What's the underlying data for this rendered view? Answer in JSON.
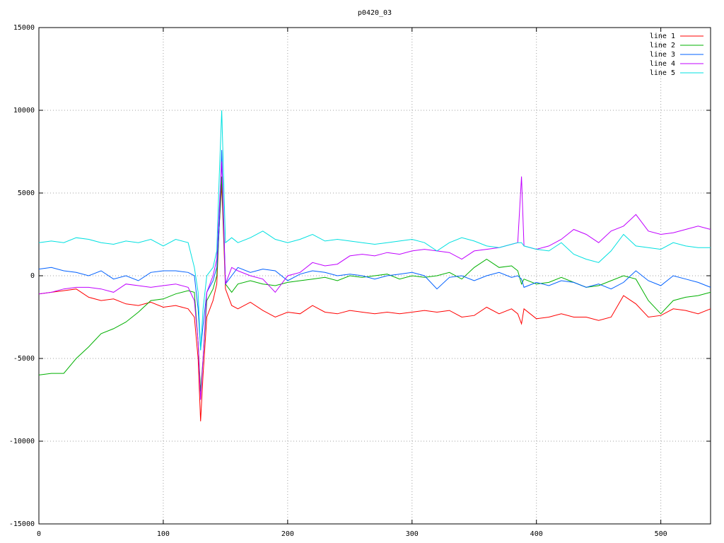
{
  "chart_data": {
    "type": "line",
    "title": "p0420_03",
    "x": [
      0,
      10,
      20,
      30,
      40,
      50,
      60,
      70,
      80,
      90,
      100,
      110,
      120,
      125,
      128,
      130,
      132,
      135,
      140,
      143,
      145,
      147,
      150,
      155,
      160,
      170,
      180,
      190,
      200,
      210,
      220,
      230,
      240,
      250,
      260,
      270,
      280,
      290,
      300,
      310,
      320,
      330,
      340,
      350,
      360,
      370,
      380,
      385,
      388,
      390,
      400,
      410,
      420,
      430,
      440,
      450,
      460,
      470,
      480,
      490,
      500,
      510,
      520,
      530,
      540
    ],
    "series": [
      {
        "name": "line 1",
        "color": "#ff0000",
        "values": [
          -1100,
          -1000,
          -900,
          -800,
          -1300,
          -1500,
          -1400,
          -1700,
          -1800,
          -1600,
          -1900,
          -1800,
          -2000,
          -2500,
          -5000,
          -8800,
          -6000,
          -2500,
          -1500,
          -500,
          3000,
          5500,
          -800,
          -1800,
          -2000,
          -1600,
          -2100,
          -2500,
          -2200,
          -2300,
          -1800,
          -2200,
          -2300,
          -2100,
          -2200,
          -2300,
          -2200,
          -2300,
          -2200,
          -2100,
          -2200,
          -2100,
          -2500,
          -2400,
          -1900,
          -2300,
          -2000,
          -2300,
          -2900,
          -2000,
          -2600,
          -2500,
          -2300,
          -2500,
          -2500,
          -2700,
          -2500,
          -1200,
          -1700,
          -2500,
          -2400,
          -2000,
          -2100,
          -2300,
          -2000
        ]
      },
      {
        "name": "line 2",
        "color": "#00b000",
        "values": [
          -6000,
          -5900,
          -5900,
          -5000,
          -4300,
          -3500,
          -3200,
          -2800,
          -2200,
          -1500,
          -1400,
          -1100,
          -900,
          -1000,
          -4000,
          -7000,
          -5000,
          -1500,
          -800,
          0,
          3000,
          6000,
          -500,
          -1000,
          -500,
          -300,
          -500,
          -600,
          -400,
          -300,
          -200,
          -100,
          -300,
          0,
          -100,
          0,
          100,
          -200,
          0,
          -100,
          0,
          200,
          -200,
          500,
          1000,
          500,
          600,
          300,
          -500,
          -200,
          -500,
          -400,
          -100,
          -400,
          -700,
          -600,
          -300,
          0,
          -200,
          -1500,
          -2300,
          -1500,
          -1300,
          -1200,
          -1000
        ]
      },
      {
        "name": "line 3",
        "color": "#0060ff",
        "values": [
          400,
          500,
          300,
          200,
          0,
          300,
          -200,
          0,
          -300,
          200,
          300,
          300,
          200,
          0,
          -2000,
          -4500,
          -3000,
          -1000,
          -300,
          500,
          3000,
          7600,
          -500,
          0,
          500,
          200,
          400,
          300,
          -300,
          100,
          300,
          200,
          0,
          100,
          0,
          -200,
          0,
          100,
          200,
          0,
          -800,
          -100,
          0,
          -300,
          0,
          200,
          -100,
          0,
          -200,
          -700,
          -400,
          -600,
          -300,
          -400,
          -700,
          -500,
          -800,
          -400,
          300,
          -300,
          -600,
          0,
          -200,
          -400,
          -700
        ]
      },
      {
        "name": "line 4",
        "color": "#c000ff",
        "values": [
          -1100,
          -1000,
          -800,
          -700,
          -700,
          -800,
          -1000,
          -500,
          -600,
          -700,
          -600,
          -500,
          -700,
          -1500,
          -4000,
          -7500,
          -5000,
          -1000,
          0,
          1000,
          4000,
          6900,
          -500,
          500,
          300,
          0,
          -200,
          -1000,
          0,
          200,
          800,
          600,
          700,
          1200,
          1300,
          1200,
          1400,
          1300,
          1500,
          1600,
          1500,
          1400,
          1000,
          1500,
          1600,
          1700,
          1900,
          2000,
          6000,
          1800,
          1600,
          1800,
          2200,
          2800,
          2500,
          2000,
          2700,
          3000,
          3700,
          2700,
          2500,
          2600,
          2800,
          3000,
          2800
        ]
      },
      {
        "name": "line 5",
        "color": "#00e0e0",
        "values": [
          2000,
          2100,
          2000,
          2300,
          2200,
          2000,
          1900,
          2100,
          2000,
          2200,
          1800,
          2200,
          2000,
          500,
          -1000,
          -4500,
          -2000,
          0,
          500,
          1500,
          6000,
          10000,
          2000,
          2300,
          2000,
          2300,
          2700,
          2200,
          2000,
          2200,
          2500,
          2100,
          2200,
          2100,
          2000,
          1900,
          2000,
          2100,
          2200,
          2000,
          1500,
          2000,
          2300,
          2100,
          1800,
          1700,
          1900,
          2000,
          2000,
          1800,
          1600,
          1500,
          2000,
          1300,
          1000,
          800,
          1500,
          2500,
          1800,
          1700,
          1600,
          2000,
          1800,
          1700,
          1700
        ]
      }
    ],
    "xlim": [
      0,
      540
    ],
    "ylim": [
      -15000,
      15000
    ],
    "xticks": [
      0,
      100,
      200,
      300,
      400,
      500
    ],
    "yticks": [
      -15000,
      -10000,
      -5000,
      0,
      5000,
      10000,
      15000
    ],
    "grid": true,
    "legend": "top-right"
  }
}
